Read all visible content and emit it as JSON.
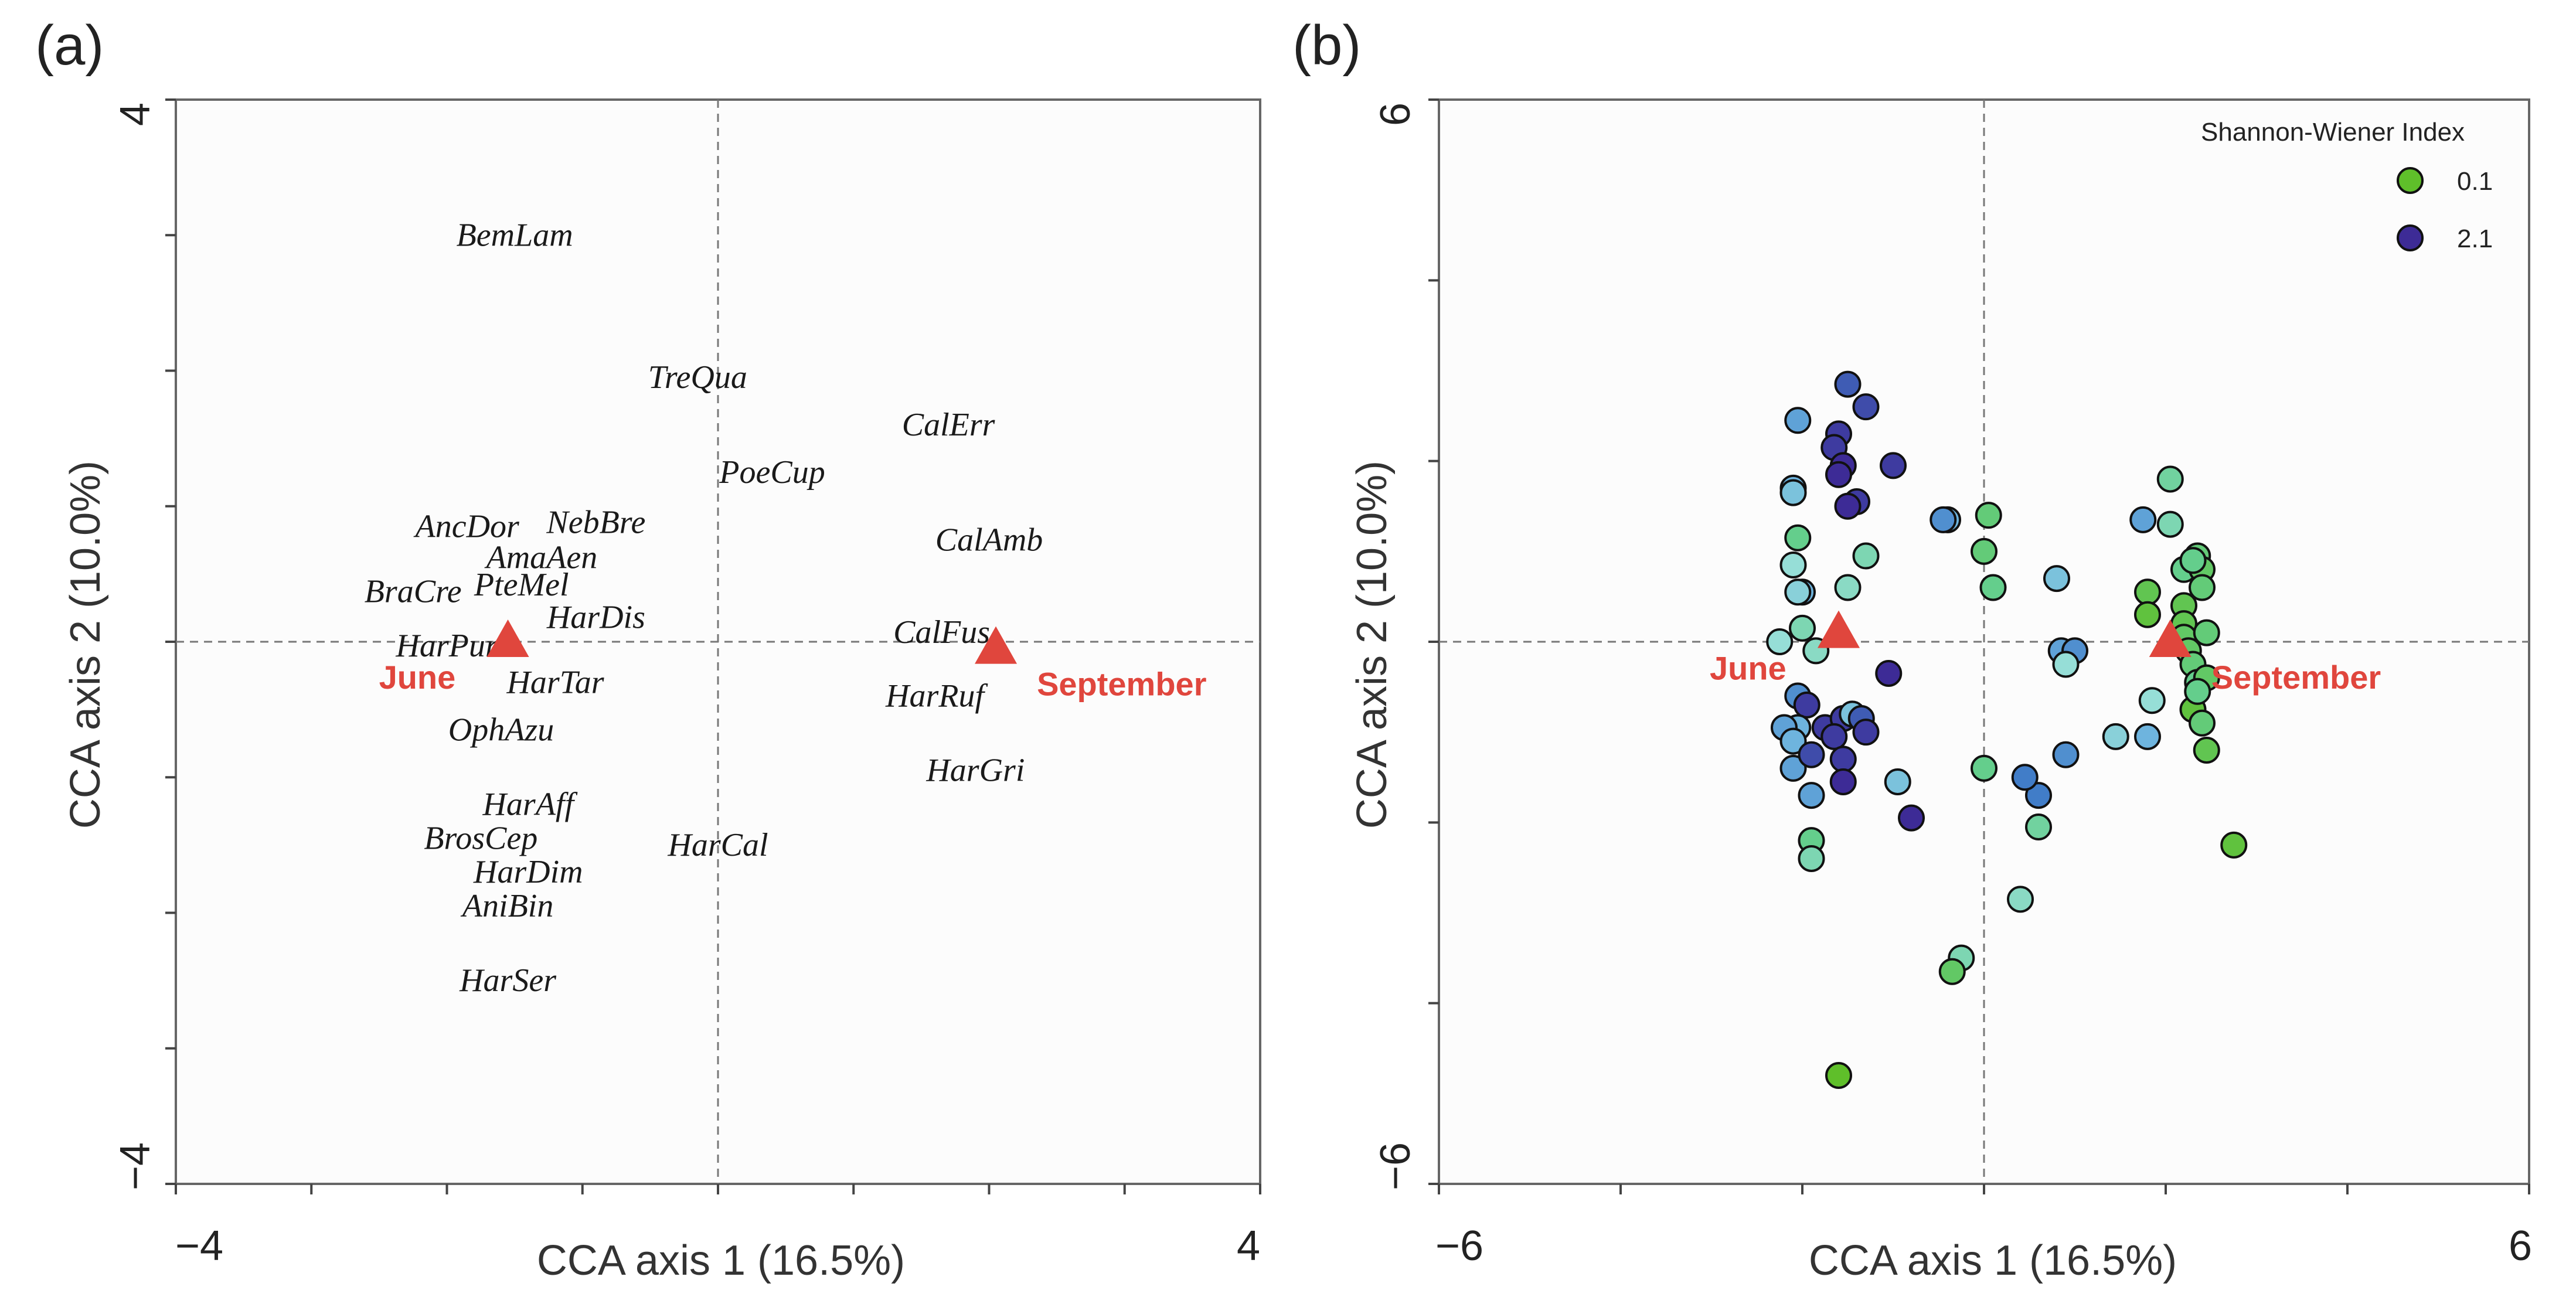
{
  "chart_data": [
    {
      "panel": "(a)",
      "type": "scatter",
      "xlabel": "CCA axis 1 (16.5%)",
      "ylabel": "CCA axis 2 (10.0%)",
      "xlim": [
        -4,
        4
      ],
      "ylim": [
        -4,
        4
      ],
      "x_tick_labels": [
        "−4",
        "4"
      ],
      "y_tick_labels": [
        "4",
        "−4"
      ],
      "species": [
        {
          "label": "BemLam",
          "x": -1.5,
          "y": 3.0
        },
        {
          "label": "TreQua",
          "x": -0.15,
          "y": 1.95
        },
        {
          "label": "CalErr",
          "x": 1.7,
          "y": 1.6
        },
        {
          "label": "PoeCup",
          "x": 0.4,
          "y": 1.25
        },
        {
          "label": "CalAmb",
          "x": 2.0,
          "y": 0.75
        },
        {
          "label": "AncDor",
          "x": -1.85,
          "y": 0.85
        },
        {
          "label": "NebBre",
          "x": -0.9,
          "y": 0.88
        },
        {
          "label": "AmaAen",
          "x": -1.3,
          "y": 0.62
        },
        {
          "label": "PteMel",
          "x": -1.45,
          "y": 0.42
        },
        {
          "label": "BraCre",
          "x": -2.25,
          "y": 0.37
        },
        {
          "label": "HarDis",
          "x": -0.9,
          "y": 0.18
        },
        {
          "label": "HarPur",
          "x": -2.0,
          "y": -0.03
        },
        {
          "label": "CalFus",
          "x": 1.65,
          "y": 0.07
        },
        {
          "label": "HarTar",
          "x": -1.2,
          "y": -0.3
        },
        {
          "label": "HarRuf",
          "x": 1.6,
          "y": -0.4
        },
        {
          "label": "OphAzu",
          "x": -1.6,
          "y": -0.65
        },
        {
          "label": "HarGri",
          "x": 1.9,
          "y": -0.95
        },
        {
          "label": "HarAff",
          "x": -1.4,
          "y": -1.2
        },
        {
          "label": "BrosCep",
          "x": -1.75,
          "y": -1.45
        },
        {
          "label": "HarDim",
          "x": -1.4,
          "y": -1.7
        },
        {
          "label": "HarCal",
          "x": 0.0,
          "y": -1.5
        },
        {
          "label": "AniBin",
          "x": -1.55,
          "y": -1.95
        },
        {
          "label": "HarSer",
          "x": -1.55,
          "y": -2.5
        }
      ],
      "centroids": [
        {
          "label": "June",
          "x": -1.55,
          "y": 0.0
        },
        {
          "label": "September",
          "x": 2.05,
          "y": -0.05
        }
      ]
    },
    {
      "panel": "(b)",
      "type": "scatter",
      "xlabel": "CCA axis 1 (16.5%)",
      "ylabel": "CCA axis 2 (10.0%)",
      "xlim": [
        -6,
        6
      ],
      "ylim": [
        -6,
        6
      ],
      "x_tick_labels": [
        "−6",
        "6"
      ],
      "y_tick_labels": [
        "6",
        "−6"
      ],
      "legend": {
        "title": "Shannon-Wiener Index",
        "position": "top-right",
        "entries": [
          {
            "label": "0.1",
            "color": "#5fbf2a"
          },
          {
            "label": "2.1",
            "color": "#3d2b96"
          }
        ]
      },
      "centroids": [
        {
          "label": "June",
          "x": -1.6,
          "y": 0.1
        },
        {
          "label": "September",
          "x": 2.05,
          "y": 0.0
        }
      ],
      "points": [
        {
          "x": -1.5,
          "y": 2.85,
          "h": 1.8
        },
        {
          "x": -1.3,
          "y": 2.6,
          "h": 1.9
        },
        {
          "x": -1.6,
          "y": 2.3,
          "h": 2.0
        },
        {
          "x": -1.65,
          "y": 2.15,
          "h": 2.0
        },
        {
          "x": -1.55,
          "y": 1.95,
          "h": 2.1
        },
        {
          "x": -2.05,
          "y": 2.45,
          "h": 1.4
        },
        {
          "x": -1.0,
          "y": 1.95,
          "h": 2.0
        },
        {
          "x": -1.6,
          "y": 1.85,
          "h": 2.1
        },
        {
          "x": -1.4,
          "y": 1.55,
          "h": 2.0
        },
        {
          "x": -1.5,
          "y": 1.5,
          "h": 2.1
        },
        {
          "x": -2.1,
          "y": 1.7,
          "h": 1.3
        },
        {
          "x": -2.1,
          "y": 1.65,
          "h": 1.2
        },
        {
          "x": -2.05,
          "y": 1.15,
          "h": 0.6
        },
        {
          "x": -2.1,
          "y": 0.85,
          "h": 1.0
        },
        {
          "x": -2.0,
          "y": 0.55,
          "h": 1.3
        },
        {
          "x": -2.05,
          "y": 0.55,
          "h": 1.1
        },
        {
          "x": -1.5,
          "y": 0.6,
          "h": 0.9
        },
        {
          "x": -1.3,
          "y": 0.95,
          "h": 0.8
        },
        {
          "x": -0.4,
          "y": 1.35,
          "h": 1.3
        },
        {
          "x": -0.45,
          "y": 1.35,
          "h": 1.5
        },
        {
          "x": 0.05,
          "y": 1.4,
          "h": 0.5
        },
        {
          "x": 0.0,
          "y": 1.0,
          "h": 0.5
        },
        {
          "x": 0.1,
          "y": 0.6,
          "h": 0.6
        },
        {
          "x": 0.8,
          "y": 0.7,
          "h": 1.2
        },
        {
          "x": -2.0,
          "y": 0.15,
          "h": 0.8
        },
        {
          "x": -2.25,
          "y": 0.0,
          "h": 1.0
        },
        {
          "x": -1.85,
          "y": -0.1,
          "h": 0.9
        },
        {
          "x": -1.05,
          "y": -0.35,
          "h": 2.1
        },
        {
          "x": -2.05,
          "y": -0.6,
          "h": 1.5
        },
        {
          "x": -1.95,
          "y": -0.7,
          "h": 2.0
        },
        {
          "x": -2.05,
          "y": -0.95,
          "h": 1.3
        },
        {
          "x": -2.2,
          "y": -0.95,
          "h": 1.4
        },
        {
          "x": -1.75,
          "y": -0.95,
          "h": 2.0
        },
        {
          "x": -1.55,
          "y": -0.85,
          "h": 2.0
        },
        {
          "x": -1.45,
          "y": -0.8,
          "h": 1.2
        },
        {
          "x": -1.35,
          "y": -0.85,
          "h": 1.8
        },
        {
          "x": -1.3,
          "y": -1.0,
          "h": 2.0
        },
        {
          "x": -1.65,
          "y": -1.05,
          "h": 2.0
        },
        {
          "x": -2.1,
          "y": -1.1,
          "h": 1.3
        },
        {
          "x": -2.1,
          "y": -1.4,
          "h": 1.4
        },
        {
          "x": -1.9,
          "y": -1.25,
          "h": 1.9
        },
        {
          "x": -1.55,
          "y": -1.3,
          "h": 2.0
        },
        {
          "x": -1.55,
          "y": -1.55,
          "h": 2.1
        },
        {
          "x": -0.95,
          "y": -1.55,
          "h": 1.2
        },
        {
          "x": -1.9,
          "y": -1.7,
          "h": 1.4
        },
        {
          "x": -1.9,
          "y": -2.2,
          "h": 0.6
        },
        {
          "x": -1.9,
          "y": -2.4,
          "h": 0.8
        },
        {
          "x": -0.8,
          "y": -1.95,
          "h": 2.1
        },
        {
          "x": 0.0,
          "y": -1.4,
          "h": 0.6
        },
        {
          "x": 0.6,
          "y": -1.7,
          "h": 1.6
        },
        {
          "x": 0.6,
          "y": -2.05,
          "h": 0.7
        },
        {
          "x": 0.45,
          "y": -1.5,
          "h": 1.6
        },
        {
          "x": 0.9,
          "y": -1.25,
          "h": 1.5
        },
        {
          "x": 1.45,
          "y": -1.05,
          "h": 1.1
        },
        {
          "x": 0.4,
          "y": -2.85,
          "h": 0.9
        },
        {
          "x": -0.25,
          "y": -3.5,
          "h": 0.8
        },
        {
          "x": -0.35,
          "y": -3.65,
          "h": 0.4
        },
        {
          "x": -1.6,
          "y": -4.8,
          "h": 0.1
        },
        {
          "x": 0.85,
          "y": -0.1,
          "h": 1.4
        },
        {
          "x": 1.0,
          "y": -0.1,
          "h": 1.5
        },
        {
          "x": 0.9,
          "y": -0.25,
          "h": 1.0
        },
        {
          "x": 1.75,
          "y": 1.35,
          "h": 1.4
        },
        {
          "x": 2.05,
          "y": 1.8,
          "h": 0.7
        },
        {
          "x": 2.05,
          "y": 1.3,
          "h": 0.8
        },
        {
          "x": 1.8,
          "y": 0.55,
          "h": 0.3
        },
        {
          "x": 1.8,
          "y": 0.3,
          "h": 0.2
        },
        {
          "x": 2.2,
          "y": 0.8,
          "h": 0.6
        },
        {
          "x": 2.35,
          "y": 0.95,
          "h": 0.5
        },
        {
          "x": 2.4,
          "y": 0.8,
          "h": 0.4
        },
        {
          "x": 2.4,
          "y": 0.6,
          "h": 0.5
        },
        {
          "x": 2.2,
          "y": 0.4,
          "h": 0.3
        },
        {
          "x": 2.2,
          "y": 0.2,
          "h": 0.3
        },
        {
          "x": 2.2,
          "y": 0.05,
          "h": 0.4
        },
        {
          "x": 2.25,
          "y": -0.1,
          "h": 0.4
        },
        {
          "x": 2.3,
          "y": -0.25,
          "h": 0.5
        },
        {
          "x": 2.35,
          "y": -0.45,
          "h": 0.6
        },
        {
          "x": 2.45,
          "y": -0.4,
          "h": 0.4
        },
        {
          "x": 2.3,
          "y": -0.75,
          "h": 0.2
        },
        {
          "x": 2.4,
          "y": -0.9,
          "h": 0.5
        },
        {
          "x": 2.45,
          "y": -1.2,
          "h": 0.3
        },
        {
          "x": 1.85,
          "y": -0.65,
          "h": 1.0
        },
        {
          "x": 1.8,
          "y": -1.05,
          "h": 1.3
        },
        {
          "x": 2.75,
          "y": -2.25,
          "h": 0.2
        },
        {
          "x": 2.3,
          "y": 0.9,
          "h": 0.6
        },
        {
          "x": 2.45,
          "y": 0.1,
          "h": 0.5
        },
        {
          "x": 2.35,
          "y": -0.55,
          "h": 0.6
        }
      ]
    }
  ]
}
